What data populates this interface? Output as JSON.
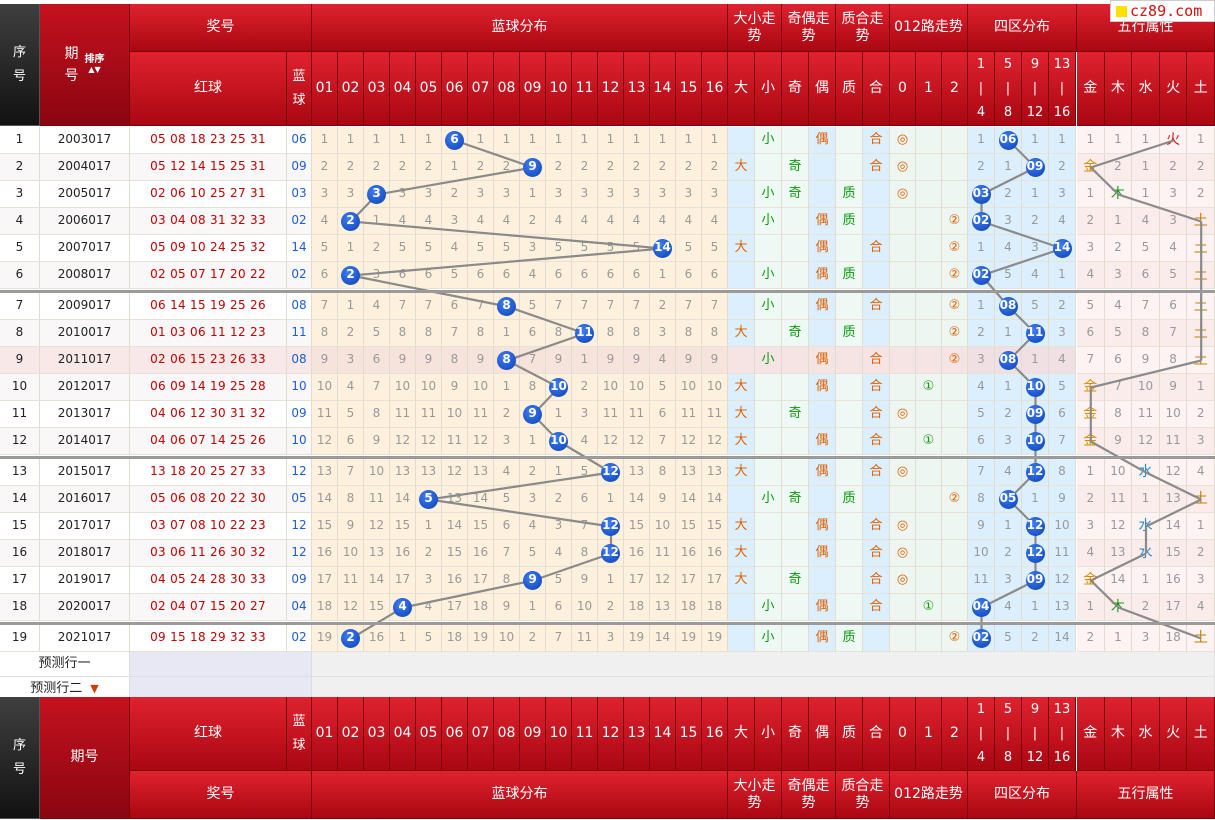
{
  "logo": {
    "text": "cz89.com"
  },
  "header": {
    "idx": "序号",
    "issue": "期号",
    "sort": "排序",
    "prize": "奖号",
    "red": "红球",
    "blue": "蓝球",
    "blue_dist": "蓝球分布",
    "bigsmall": "大小走势",
    "oddeven": "奇偶走势",
    "primecomp": "质合走势",
    "route": "012路走势",
    "zones": "四区分布",
    "elements": "五行属性",
    "big": "大",
    "small": "小",
    "odd": "奇",
    "even": "偶",
    "prime": "质",
    "comp": "合",
    "r0": "0",
    "r1": "1",
    "r2": "2",
    "zone_labels": [
      [
        "1",
        "|",
        "4"
      ],
      [
        "5",
        "|",
        "8"
      ],
      [
        "9",
        "|",
        "12"
      ],
      [
        "13",
        "|",
        "16"
      ]
    ],
    "element_labels": [
      "金",
      "木",
      "水",
      "火",
      "土"
    ],
    "blue_nums": [
      "01",
      "02",
      "03",
      "04",
      "05",
      "06",
      "07",
      "08",
      "09",
      "10",
      "11",
      "12",
      "13",
      "14",
      "15",
      "16"
    ]
  },
  "predict": {
    "row1": "预测行一",
    "row2": "预测行二"
  },
  "symbols": {
    "big": "大",
    "small": "小",
    "odd": "奇",
    "even": "偶",
    "prime": "质",
    "comp": "合",
    "r0": "◎",
    "r1": "①",
    "r2": "②",
    "gold": "金",
    "wood": "木",
    "water": "水",
    "fire": "火",
    "earth": "土"
  },
  "rows": [
    {
      "idx": "1",
      "issue": "2003017",
      "red": "05 08 18 23 25 31",
      "blue": "06",
      "misses": [
        "1",
        "1",
        "1",
        "1",
        "1",
        "",
        "1",
        "1",
        "1",
        "1",
        "1",
        "1",
        "1",
        "1",
        "1",
        "1"
      ],
      "bs": "small",
      "oe": "even",
      "pc": "comp",
      "route": "r0",
      "zone": [
        "1",
        "06",
        "1",
        "1"
      ],
      "el": [
        "1",
        "1",
        "1",
        "fire",
        "1"
      ]
    },
    {
      "idx": "2",
      "issue": "2004017",
      "red": "05 12 14 15 25 31",
      "blue": "09",
      "misses": [
        "2",
        "2",
        "2",
        "2",
        "2",
        "1",
        "2",
        "2",
        "",
        "2",
        "2",
        "2",
        "2",
        "2",
        "2",
        "2"
      ],
      "bs": "big",
      "oe": "odd",
      "pc": "comp",
      "route": "r0",
      "zone": [
        "2",
        "1",
        "09",
        "2"
      ],
      "el": [
        "gold",
        "2",
        "1",
        "2",
        "2"
      ]
    },
    {
      "idx": "3",
      "issue": "2005017",
      "red": "02 06 10 25 27 31",
      "blue": "03",
      "misses": [
        "3",
        "3",
        "",
        "3",
        "3",
        "2",
        "3",
        "3",
        "1",
        "3",
        "3",
        "3",
        "3",
        "3",
        "3",
        "3"
      ],
      "bs": "small",
      "oe": "odd",
      "pc": "prime",
      "route": "r0",
      "zone": [
        "03",
        "2",
        "1",
        "3"
      ],
      "el": [
        "1",
        "wood",
        "1",
        "3",
        "2"
      ]
    },
    {
      "idx": "4",
      "issue": "2006017",
      "red": "03 04 08 31 32 33",
      "blue": "02",
      "misses": [
        "4",
        "",
        "1",
        "4",
        "4",
        "3",
        "4",
        "4",
        "2",
        "4",
        "4",
        "4",
        "4",
        "4",
        "4",
        "4"
      ],
      "bs": "small",
      "oe": "even",
      "pc": "prime",
      "route": "r2",
      "zone": [
        "02",
        "3",
        "2",
        "4"
      ],
      "el": [
        "2",
        "1",
        "4",
        "3",
        "earth"
      ]
    },
    {
      "idx": "5",
      "issue": "2007017",
      "red": "05 09 10 24 25 32",
      "blue": "14",
      "misses": [
        "5",
        "1",
        "2",
        "5",
        "5",
        "4",
        "5",
        "5",
        "3",
        "5",
        "5",
        "5",
        "5",
        "",
        "5",
        "5"
      ],
      "bs": "big",
      "oe": "even",
      "pc": "comp",
      "route": "r2",
      "zone": [
        "1",
        "4",
        "3",
        "14"
      ],
      "el": [
        "3",
        "2",
        "5",
        "4",
        "earth"
      ]
    },
    {
      "idx": "6",
      "issue": "2008017",
      "red": "02 05 07 17 20 22",
      "blue": "02",
      "misses": [
        "6",
        "",
        "3",
        "6",
        "6",
        "5",
        "6",
        "6",
        "4",
        "6",
        "6",
        "6",
        "6",
        "1",
        "6",
        "6"
      ],
      "bs": "small",
      "oe": "even",
      "pc": "prime",
      "route": "r2",
      "zone": [
        "02",
        "5",
        "4",
        "1"
      ],
      "el": [
        "4",
        "3",
        "6",
        "5",
        "earth"
      ]
    },
    {
      "idx": "7",
      "issue": "2009017",
      "red": "06 14 15 19 25 26",
      "blue": "08",
      "misses": [
        "7",
        "1",
        "4",
        "7",
        "7",
        "6",
        "7",
        "",
        "5",
        "7",
        "7",
        "7",
        "7",
        "2",
        "7",
        "7"
      ],
      "bs": "small",
      "oe": "even",
      "pc": "comp",
      "route": "r2",
      "zone": [
        "1",
        "08",
        "5",
        "2"
      ],
      "el": [
        "5",
        "4",
        "7",
        "6",
        "earth"
      ]
    },
    {
      "idx": "8",
      "issue": "2010017",
      "red": "01 03 06 11 12 23",
      "blue": "11",
      "misses": [
        "8",
        "2",
        "5",
        "8",
        "8",
        "7",
        "8",
        "1",
        "6",
        "8",
        "",
        "8",
        "8",
        "3",
        "8",
        "8"
      ],
      "bs": "big",
      "oe": "odd",
      "pc": "prime",
      "route": "r2",
      "zone": [
        "2",
        "1",
        "11",
        "3"
      ],
      "el": [
        "6",
        "5",
        "8",
        "7",
        "earth"
      ]
    },
    {
      "idx": "9",
      "issue": "2011017",
      "red": "02 06 15 23 26 33",
      "blue": "08",
      "misses": [
        "9",
        "3",
        "6",
        "9",
        "9",
        "8",
        "9",
        "",
        "7",
        "9",
        "1",
        "9",
        "9",
        "4",
        "9",
        "9"
      ],
      "bs": "small",
      "oe": "even",
      "pc": "comp",
      "route": "r2",
      "zone": [
        "3",
        "08",
        "1",
        "4"
      ],
      "el": [
        "7",
        "6",
        "9",
        "8",
        "earth"
      ]
    },
    {
      "idx": "10",
      "issue": "2012017",
      "red": "06 09 14 19 25 28",
      "blue": "10",
      "misses": [
        "10",
        "4",
        "7",
        "10",
        "10",
        "9",
        "10",
        "1",
        "8",
        "",
        "2",
        "10",
        "10",
        "5",
        "10",
        "10"
      ],
      "bs": "big",
      "oe": "even",
      "pc": "comp",
      "route": "r1",
      "zone": [
        "4",
        "1",
        "10",
        "5"
      ],
      "el": [
        "gold",
        "7",
        "10",
        "9",
        "1"
      ]
    },
    {
      "idx": "11",
      "issue": "2013017",
      "red": "04 06 12 30 31 32",
      "blue": "09",
      "misses": [
        "11",
        "5",
        "8",
        "11",
        "11",
        "10",
        "11",
        "2",
        "",
        "1",
        "3",
        "11",
        "11",
        "6",
        "11",
        "11"
      ],
      "bs": "big",
      "oe": "odd",
      "pc": "comp",
      "route": "r0",
      "zone": [
        "5",
        "2",
        "09",
        "6"
      ],
      "el": [
        "gold",
        "8",
        "11",
        "10",
        "2"
      ]
    },
    {
      "idx": "12",
      "issue": "2014017",
      "red": "04 06 07 14 25 26",
      "blue": "10",
      "misses": [
        "12",
        "6",
        "9",
        "12",
        "12",
        "11",
        "12",
        "3",
        "1",
        "",
        "4",
        "12",
        "12",
        "7",
        "12",
        "12"
      ],
      "bs": "big",
      "oe": "even",
      "pc": "comp",
      "route": "r1",
      "zone": [
        "6",
        "3",
        "10",
        "7"
      ],
      "el": [
        "gold",
        "9",
        "12",
        "11",
        "3"
      ]
    },
    {
      "idx": "13",
      "issue": "2015017",
      "red": "13 18 20 25 27 33",
      "blue": "12",
      "misses": [
        "13",
        "7",
        "10",
        "13",
        "13",
        "12",
        "13",
        "4",
        "2",
        "1",
        "5",
        "",
        "13",
        "8",
        "13",
        "13"
      ],
      "bs": "big",
      "oe": "even",
      "pc": "comp",
      "route": "r0",
      "zone": [
        "7",
        "4",
        "12",
        "8"
      ],
      "el": [
        "1",
        "10",
        "water",
        "12",
        "4"
      ]
    },
    {
      "idx": "14",
      "issue": "2016017",
      "red": "05 06 08 20 22 30",
      "blue": "05",
      "misses": [
        "14",
        "8",
        "11",
        "14",
        "",
        "13",
        "14",
        "5",
        "3",
        "2",
        "6",
        "1",
        "14",
        "9",
        "14",
        "14"
      ],
      "bs": "small",
      "oe": "odd",
      "pc": "prime",
      "route": "r2",
      "zone": [
        "8",
        "05",
        "1",
        "9"
      ],
      "el": [
        "2",
        "11",
        "1",
        "13",
        "earth"
      ]
    },
    {
      "idx": "15",
      "issue": "2017017",
      "red": "03 07 08 10 22 23",
      "blue": "12",
      "misses": [
        "15",
        "9",
        "12",
        "15",
        "1",
        "14",
        "15",
        "6",
        "4",
        "3",
        "7",
        "",
        "15",
        "10",
        "15",
        "15"
      ],
      "bs": "big",
      "oe": "even",
      "pc": "comp",
      "route": "r0",
      "zone": [
        "9",
        "1",
        "12",
        "10"
      ],
      "el": [
        "3",
        "12",
        "water",
        "14",
        "1"
      ]
    },
    {
      "idx": "16",
      "issue": "2018017",
      "red": "03 06 11 26 30 32",
      "blue": "12",
      "misses": [
        "16",
        "10",
        "13",
        "16",
        "2",
        "15",
        "16",
        "7",
        "5",
        "4",
        "8",
        "",
        "16",
        "11",
        "16",
        "16"
      ],
      "bs": "big",
      "oe": "even",
      "pc": "comp",
      "route": "r0",
      "zone": [
        "10",
        "2",
        "12",
        "11"
      ],
      "el": [
        "4",
        "13",
        "water",
        "15",
        "2"
      ]
    },
    {
      "idx": "17",
      "issue": "2019017",
      "red": "04 05 24 28 30 33",
      "blue": "09",
      "misses": [
        "17",
        "11",
        "14",
        "17",
        "3",
        "16",
        "17",
        "8",
        "",
        "5",
        "9",
        "1",
        "17",
        "12",
        "17",
        "17"
      ],
      "bs": "big",
      "oe": "odd",
      "pc": "comp",
      "route": "r0",
      "zone": [
        "11",
        "3",
        "09",
        "12"
      ],
      "el": [
        "gold",
        "14",
        "1",
        "16",
        "3"
      ]
    },
    {
      "idx": "18",
      "issue": "2020017",
      "red": "02 04 07 15 20 27",
      "blue": "04",
      "misses": [
        "18",
        "12",
        "15",
        "",
        "4",
        "17",
        "18",
        "9",
        "1",
        "6",
        "10",
        "2",
        "18",
        "13",
        "18",
        "18"
      ],
      "bs": "small",
      "oe": "even",
      "pc": "comp",
      "route": "r1",
      "zone": [
        "04",
        "4",
        "1",
        "13"
      ],
      "el": [
        "1",
        "wood",
        "2",
        "17",
        "4"
      ]
    },
    {
      "idx": "19",
      "issue": "2021017",
      "red": "09 15 18 29 32 33",
      "blue": "02",
      "misses": [
        "19",
        "",
        "16",
        "1",
        "5",
        "18",
        "19",
        "10",
        "2",
        "7",
        "11",
        "3",
        "19",
        "14",
        "19",
        "19"
      ],
      "bs": "small",
      "oe": "even",
      "pc": "prime",
      "route": "r2",
      "zone": [
        "02",
        "5",
        "2",
        "14"
      ],
      "el": [
        "2",
        "1",
        "3",
        "18",
        "earth"
      ]
    }
  ]
}
